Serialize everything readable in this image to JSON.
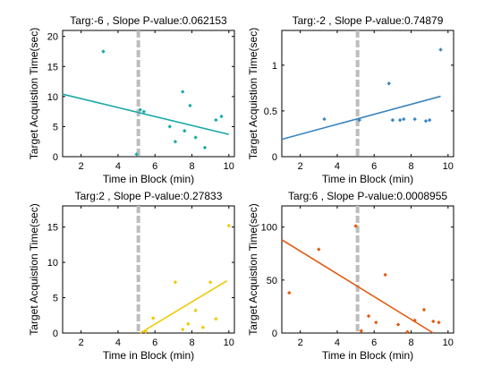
{
  "chart_data": [
    {
      "type": "scatter",
      "title": "Targ:-6 , Slope P-value:0.062153",
      "xlabel": "Time in Block (min)",
      "ylabel": "Target Acquistion Time(sec)",
      "xlim": [
        1,
        10.3
      ],
      "ylim": [
        0,
        21
      ],
      "xticks": [
        2,
        4,
        6,
        8,
        10
      ],
      "yticks": [
        0,
        5,
        10,
        15,
        20
      ],
      "color": "#1aa8a8",
      "points": [
        [
          3.2,
          17.5
        ],
        [
          5.0,
          0.4
        ],
        [
          5.2,
          7.8
        ],
        [
          5.4,
          7.5
        ],
        [
          6.8,
          5.0
        ],
        [
          7.1,
          2.5
        ],
        [
          7.5,
          10.8
        ],
        [
          7.9,
          8.5
        ],
        [
          7.6,
          4.3
        ],
        [
          8.2,
          3.2
        ],
        [
          8.7,
          1.5
        ],
        [
          9.3,
          6.1
        ],
        [
          9.6,
          6.7
        ]
      ],
      "fit_line": [
        [
          1,
          10.4
        ],
        [
          10,
          3.7
        ]
      ],
      "vline_x": 5.1
    },
    {
      "type": "scatter",
      "title": "Targ:-2 , Slope P-value:0.74879",
      "xlabel": "Time in Block (min)",
      "ylabel": "Target Acquistion Time(sec)",
      "xlim": [
        1,
        10.3
      ],
      "ylim": [
        0,
        1.38
      ],
      "xticks": [
        2,
        4,
        6,
        8,
        10
      ],
      "yticks": [
        0,
        0.5,
        1
      ],
      "color": "#3a85be",
      "points": [
        [
          3.3,
          0.41
        ],
        [
          5.2,
          0.4
        ],
        [
          6.8,
          0.8
        ],
        [
          7.0,
          0.4
        ],
        [
          7.4,
          0.4
        ],
        [
          7.6,
          0.41
        ],
        [
          8.2,
          0.41
        ],
        [
          8.8,
          0.39
        ],
        [
          9.0,
          0.4
        ],
        [
          9.6,
          1.17
        ]
      ],
      "fit_line": [
        [
          1,
          0.19
        ],
        [
          9.6,
          0.66
        ]
      ],
      "vline_x": 5.1
    },
    {
      "type": "scatter",
      "title": "Targ:2 , Slope P-value:0.27833",
      "xlabel": "Time in Block (min)",
      "ylabel": "Target Acquistion Time(sec)",
      "xlim": [
        1,
        10.3
      ],
      "ylim": [
        0,
        18
      ],
      "xticks": [
        2,
        4,
        6,
        8,
        10
      ],
      "yticks": [
        0,
        5,
        10,
        15
      ],
      "color": "#f0c800",
      "points": [
        [
          5.5,
          0.2
        ],
        [
          5.9,
          2.1
        ],
        [
          7.1,
          7.2
        ],
        [
          7.5,
          0.5
        ],
        [
          7.8,
          1.3
        ],
        [
          8.2,
          3.2
        ],
        [
          8.6,
          0.8
        ],
        [
          9.0,
          7.2
        ],
        [
          9.3,
          2.0
        ],
        [
          10.0,
          15.2
        ]
      ],
      "fit_line": [
        [
          5.2,
          0.0
        ],
        [
          9.9,
          7.4
        ]
      ],
      "vline_x": 5.1
    },
    {
      "type": "scatter",
      "title": "Targ:6 , Slope P-value:0.0008955",
      "xlabel": "Time in Block (min)",
      "ylabel": "Target Acquistion Time(sec)",
      "xlim": [
        1,
        10.3
      ],
      "ylim": [
        0,
        120
      ],
      "xticks": [
        2,
        4,
        6,
        8,
        10
      ],
      "yticks": [
        0,
        50,
        100
      ],
      "color": "#e25a10",
      "points": [
        [
          1.4,
          38
        ],
        [
          3.0,
          79
        ],
        [
          5.0,
          101
        ],
        [
          5.3,
          2
        ],
        [
          5.7,
          16
        ],
        [
          6.1,
          10
        ],
        [
          6.6,
          55
        ],
        [
          7.3,
          8
        ],
        [
          7.8,
          1
        ],
        [
          8.2,
          12
        ],
        [
          8.7,
          22
        ],
        [
          9.2,
          11
        ],
        [
          9.5,
          10
        ]
      ],
      "fit_line": [
        [
          1,
          88
        ],
        [
          9.2,
          0
        ]
      ],
      "vline_x": 5.1
    }
  ]
}
